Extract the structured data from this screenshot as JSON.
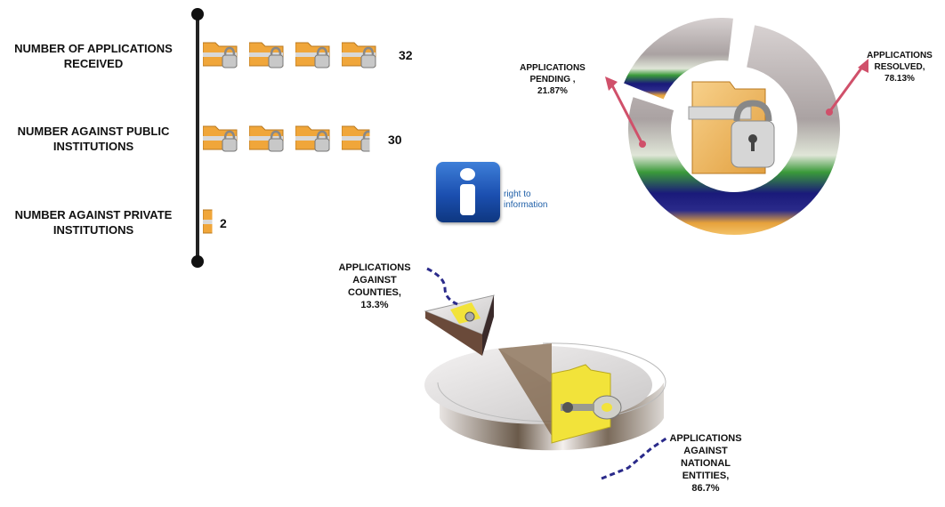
{
  "chart_data": [
    {
      "type": "bar",
      "categories": [
        "NUMBER OF APPLICATIONS RECEIVED",
        "NUMBER  AGAINST PUBLIC INSTITUTIONS",
        "NUMBER AGAINST PRIVATE INSTITUTIONS"
      ],
      "values": [
        32,
        30,
        2
      ],
      "value_labels": [
        "32",
        "30",
        "2"
      ],
      "orientation": "horizontal"
    },
    {
      "type": "pie",
      "style": "donut",
      "slices": [
        {
          "label": "APPLICATIONS PENDING ,",
          "percent_label": "21.87%",
          "value": 21.87
        },
        {
          "label": "APPLICATIONS RESOLVED,",
          "percent_label": "78.13%",
          "value": 78.13
        }
      ]
    },
    {
      "type": "pie",
      "style": "3d-exploded",
      "slices": [
        {
          "label": "APPLICATIONS AGAINST COUNTIES,",
          "percent_label": "13.3%",
          "value": 13.3
        },
        {
          "label": "APPLICATIONS AGAINST NATIONAL ENTITIES,",
          "percent_label": "86.7%",
          "value": 86.7
        }
      ]
    }
  ],
  "labels": {
    "received_l1": "NUMBER OF APPLICATIONS",
    "received_l2": "RECEIVED",
    "public_l1": "NUMBER  AGAINST PUBLIC",
    "public_l2": "INSTITUTIONS",
    "private_l1": "NUMBER AGAINST PRIVATE",
    "private_l2": "INSTITUTIONS",
    "pending_l1": "APPLICATIONS",
    "pending_l2": "PENDING ,",
    "resolved_l1": "APPLICATIONS",
    "resolved_l2": "RESOLVED,",
    "counties_l1": "APPLICATIONS",
    "counties_l2": "AGAINST",
    "counties_l3": "COUNTIES,",
    "national_l1": "APPLICATIONS",
    "national_l2": "AGAINST",
    "national_l3": "NATIONAL",
    "national_l4": "ENTITIES,"
  },
  "logo": {
    "caption_l1": "right to",
    "caption_l2": "information"
  },
  "colors": {
    "folder": "#f0a63a",
    "donut_gray": "#b9b2b2",
    "donut_green": "#3a9a3a",
    "donut_navy": "#1a1a7a",
    "donut_amber": "#e6a23c",
    "pointer_red": "#d0506a",
    "leader_navy": "#2a2a8a",
    "pie_side": "#5a4a3a",
    "pie_top": "#e8e6e6",
    "pie_folder": "#f2e33a",
    "logo_blue": "#1b4fb0"
  }
}
